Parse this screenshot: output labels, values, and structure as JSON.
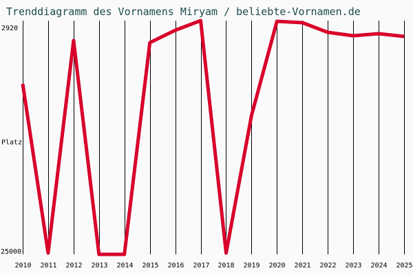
{
  "title": "Trenddiagramm des Vornamens Miryam / beliebte-Vornamen.de",
  "y_axis": {
    "top_label": "2920",
    "mid_label": "Platz",
    "bottom_label": "25000"
  },
  "colors": {
    "line": "#d8002a",
    "title": "#1d4a4a",
    "grid": "#000000",
    "background": "#fafafa"
  },
  "chart_data": {
    "type": "line",
    "title": "Trenddiagramm des Vornamens Miryam / beliebte-Vornamen.de",
    "xlabel": "",
    "ylabel": "Platz",
    "categories": [
      "2010",
      "2011",
      "2012",
      "2013",
      "2014",
      "2015",
      "2016",
      "2017",
      "2018",
      "2019",
      "2020",
      "2021",
      "2022",
      "2023",
      "2024",
      "2025"
    ],
    "series": [
      {
        "name": "Miryam",
        "values": [
          9000,
          25000,
          4000,
          25000,
          25000,
          4200,
          3300,
          2700,
          25000,
          12200,
          2750,
          2850,
          3450,
          3700,
          3550,
          3750
        ]
      }
    ],
    "ylim": [
      25000,
      2920
    ],
    "y_inverted": true,
    "grid": "vertical",
    "legend": "none"
  }
}
